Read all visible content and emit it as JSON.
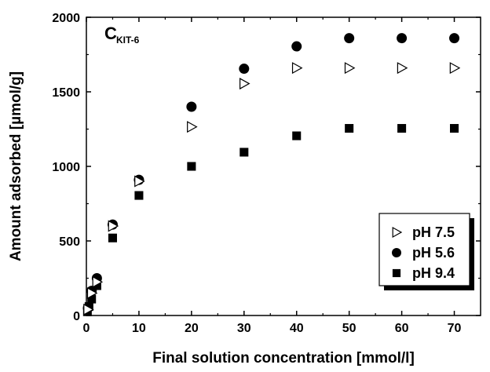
{
  "chart_data": {
    "type": "scatter",
    "xlabel": "Final solution concentration [mmol/l]",
    "ylabel": "Amount adsorbed [µmol/g]",
    "xlim": [
      0,
      75
    ],
    "ylim": [
      0,
      2000
    ],
    "x_ticks": [
      "0",
      "10",
      "20",
      "30",
      "40",
      "50",
      "60",
      "70"
    ],
    "y_ticks": [
      "0",
      "500",
      "1000",
      "1500",
      "2000"
    ],
    "annotation": {
      "main": "C",
      "subscript": "KIT-6",
      "position": "top-left"
    },
    "grid": false,
    "legend_position": "bottom-right",
    "series": [
      {
        "name": "pH 7.5",
        "marker": "open-triangle-right",
        "color": "#000000",
        "points": [
          [
            0.3,
            40
          ],
          [
            1,
            150
          ],
          [
            2,
            225
          ],
          [
            5,
            600
          ],
          [
            10,
            900
          ],
          [
            20,
            1265
          ],
          [
            30,
            1555
          ],
          [
            40,
            1660
          ],
          [
            50,
            1660
          ],
          [
            60,
            1660
          ],
          [
            70,
            1660
          ]
        ]
      },
      {
        "name": "pH 5.6",
        "marker": "filled-circle",
        "color": "#000000",
        "points": [
          [
            0.3,
            50
          ],
          [
            1,
            165
          ],
          [
            2,
            250
          ],
          [
            5,
            610
          ],
          [
            10,
            910
          ],
          [
            20,
            1400
          ],
          [
            30,
            1655
          ],
          [
            40,
            1805
          ],
          [
            50,
            1860
          ],
          [
            60,
            1860
          ],
          [
            70,
            1860
          ]
        ]
      },
      {
        "name": "pH 9.4",
        "marker": "filled-square",
        "color": "#000000",
        "points": [
          [
            0.2,
            25
          ],
          [
            0.5,
            60
          ],
          [
            1,
            110
          ],
          [
            2,
            200
          ],
          [
            5,
            520
          ],
          [
            10,
            805
          ],
          [
            20,
            1000
          ],
          [
            30,
            1095
          ],
          [
            40,
            1205
          ],
          [
            50,
            1255
          ],
          [
            60,
            1255
          ],
          [
            70,
            1255
          ]
        ]
      }
    ]
  }
}
